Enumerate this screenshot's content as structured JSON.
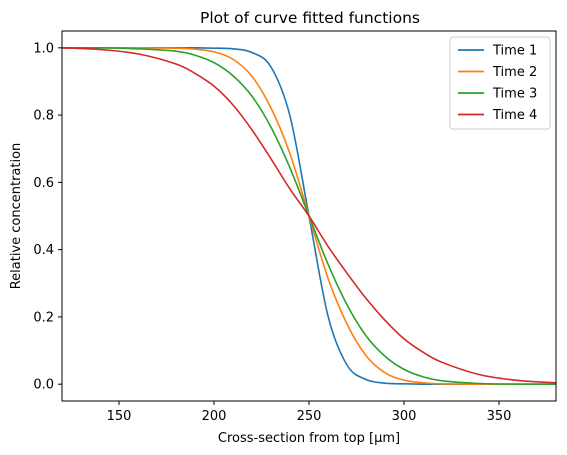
{
  "chart_data": {
    "type": "line",
    "title": "Plot of curve fitted functions",
    "xlabel": "Cross-section from top [µm]",
    "ylabel": "Relative concentration",
    "xlim": [
      120,
      380
    ],
    "ylim": [
      -0.05,
      1.05
    ],
    "xticks": [
      150,
      200,
      250,
      300,
      350
    ],
    "xtick_labels": [
      "150",
      "200",
      "250",
      "300",
      "350"
    ],
    "yticks": [
      0.0,
      0.2,
      0.4,
      0.6,
      0.8,
      1.0
    ],
    "ytick_labels": [
      "0.0",
      "0.2",
      "0.4",
      "0.6",
      "0.8",
      "1.0"
    ],
    "grid": false,
    "legend_position": "top-right",
    "x": [
      120,
      140,
      160,
      180,
      190,
      200,
      210,
      220,
      230,
      240,
      250,
      260,
      270,
      280,
      290,
      300,
      310,
      320,
      340,
      360,
      380
    ],
    "series": [
      {
        "name": "Time 1",
        "color": "#1f77b4",
        "values": [
          1.0,
          1.0,
          1.0,
          1.0,
          1.0,
          0.999,
          0.997,
          0.986,
          0.943,
          0.797,
          0.5,
          0.203,
          0.057,
          0.014,
          0.003,
          0.001,
          0.0,
          0.0,
          0.0,
          0.0,
          0.0
        ]
      },
      {
        "name": "Time 2",
        "color": "#ff7f0e",
        "values": [
          1.0,
          1.0,
          1.0,
          0.999,
          0.996,
          0.988,
          0.966,
          0.915,
          0.821,
          0.685,
          0.5,
          0.315,
          0.179,
          0.085,
          0.034,
          0.012,
          0.004,
          0.001,
          0.0,
          0.0,
          0.0
        ]
      },
      {
        "name": "Time 3",
        "color": "#2ca02c",
        "values": [
          1.0,
          1.0,
          0.997,
          0.99,
          0.978,
          0.956,
          0.917,
          0.856,
          0.764,
          0.643,
          0.5,
          0.357,
          0.236,
          0.144,
          0.083,
          0.044,
          0.022,
          0.01,
          0.002,
          0.0,
          0.0
        ]
      },
      {
        "name": "Time 4",
        "color": "#d62728",
        "values": [
          1.0,
          0.995,
          0.982,
          0.952,
          0.924,
          0.886,
          0.83,
          0.756,
          0.67,
          0.58,
          0.5,
          0.41,
          0.33,
          0.255,
          0.19,
          0.135,
          0.095,
          0.065,
          0.028,
          0.011,
          0.004
        ]
      }
    ]
  }
}
